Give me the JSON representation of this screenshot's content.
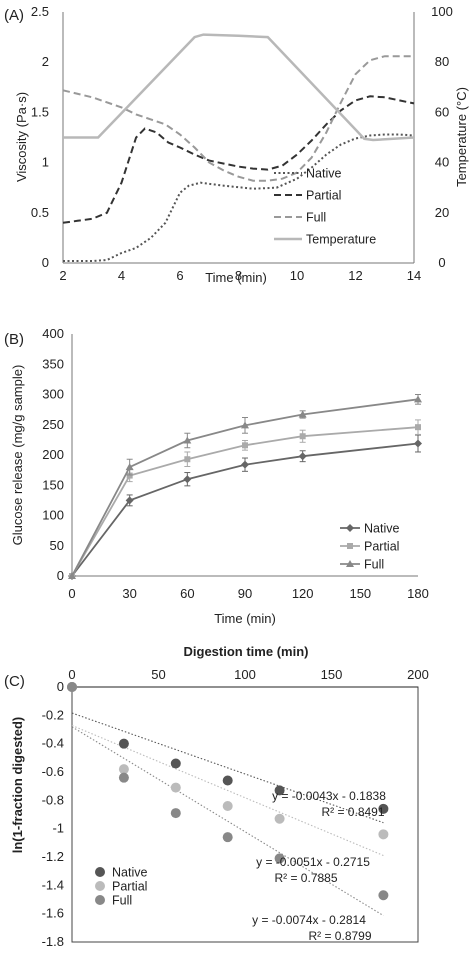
{
  "panels": {
    "a": {
      "label": "(A)"
    },
    "b": {
      "label": "(B)"
    },
    "c": {
      "label": "(C)"
    }
  },
  "chart_data": [
    {
      "type": "line",
      "panel": "(A)",
      "xlabel": "Time (min)",
      "ylabel": "Viscosity (Pa·s)",
      "y2label": "Temperature (°C)",
      "xlim": [
        2,
        14
      ],
      "ylim": [
        0,
        2.5
      ],
      "y2lim": [
        0,
        100
      ],
      "xticks": [
        "2",
        "4",
        "6",
        "8",
        "10",
        "12",
        "14"
      ],
      "yticks": [
        "0",
        "0.5",
        "1",
        "1.5",
        "2",
        "2.5"
      ],
      "y2ticks": [
        "0",
        "20",
        "40",
        "60",
        "80",
        "100"
      ],
      "grid": false,
      "legend_position": "bottom-right",
      "series": [
        {
          "name": "Native",
          "style": "dotted",
          "color": "#555555",
          "x": [
            2,
            3,
            3.5,
            4,
            4.5,
            5,
            5.5,
            6,
            6.3,
            6.7,
            7.5,
            8.5,
            9.3,
            10,
            10.5,
            11,
            11.5,
            12,
            12.5,
            13,
            13.5,
            14
          ],
          "y": [
            0.02,
            0.02,
            0.03,
            0.1,
            0.15,
            0.25,
            0.4,
            0.7,
            0.77,
            0.8,
            0.77,
            0.74,
            0.75,
            0.84,
            0.95,
            1.08,
            1.18,
            1.24,
            1.27,
            1.28,
            1.28,
            1.27
          ]
        },
        {
          "name": "Partial",
          "style": "dashed",
          "color": "#333333",
          "x": [
            2,
            2.5,
            3,
            3.5,
            4,
            4.5,
            4.8,
            5.2,
            5.6,
            6,
            6.5,
            7,
            7.5,
            8,
            8.5,
            9,
            9.5,
            10,
            10.5,
            11,
            11.5,
            12,
            12.5,
            13,
            13.5,
            14
          ],
          "y": [
            0.4,
            0.42,
            0.44,
            0.5,
            0.8,
            1.25,
            1.34,
            1.3,
            1.2,
            1.15,
            1.08,
            1.02,
            0.99,
            0.96,
            0.94,
            0.93,
            0.97,
            1.08,
            1.22,
            1.38,
            1.52,
            1.62,
            1.66,
            1.65,
            1.62,
            1.59
          ]
        },
        {
          "name": "Full",
          "style": "dashed",
          "color": "#999999",
          "x": [
            2,
            3,
            4,
            4.5,
            5,
            5.5,
            6,
            6.5,
            7,
            7.5,
            8,
            8.5,
            9,
            9.5,
            10,
            10.5,
            11,
            11.5,
            12,
            12.5,
            13,
            13.5,
            14
          ],
          "y": [
            1.72,
            1.65,
            1.55,
            1.48,
            1.43,
            1.38,
            1.28,
            1.15,
            1.0,
            0.92,
            0.86,
            0.82,
            0.82,
            0.84,
            0.9,
            1.05,
            1.3,
            1.6,
            1.88,
            2.02,
            2.06,
            2.06,
            2.06
          ]
        },
        {
          "name": "Temperature",
          "style": "solid",
          "color": "#b8b8b8",
          "axis": "right",
          "x": [
            2,
            3,
            3.2,
            6.5,
            6.8,
            8,
            9,
            12.3,
            12.6,
            14
          ],
          "y": [
            50,
            50,
            50,
            90,
            91,
            90.5,
            90,
            49.5,
            49,
            50
          ]
        }
      ]
    },
    {
      "type": "line",
      "panel": "(B)",
      "xlabel": "Time (min)",
      "ylabel": "Glucose release (mg/g sample)",
      "xlim": [
        0,
        180
      ],
      "ylim": [
        0,
        400
      ],
      "xticks": [
        "0",
        "30",
        "60",
        "90",
        "120",
        "150",
        "180"
      ],
      "yticks": [
        "0",
        "50",
        "100",
        "150",
        "200",
        "250",
        "300",
        "350",
        "400"
      ],
      "grid": false,
      "legend_position": "bottom-right",
      "x": [
        0,
        30,
        60,
        90,
        120,
        180
      ],
      "series": [
        {
          "name": "Native",
          "marker": "diamond",
          "color": "#666666",
          "values": [
            0,
            125,
            160,
            184,
            198,
            219
          ],
          "errors": [
            0,
            9,
            11,
            11,
            9,
            14
          ]
        },
        {
          "name": "Partial",
          "marker": "square",
          "color": "#aaaaaa",
          "values": [
            0,
            166,
            193,
            216,
            231,
            246
          ],
          "errors": [
            0,
            10,
            12,
            8,
            10,
            12
          ]
        },
        {
          "name": "Full",
          "marker": "triangle",
          "color": "#888888",
          "values": [
            0,
            180,
            224,
            249,
            267,
            292
          ],
          "errors": [
            0,
            13,
            12,
            13,
            6,
            8
          ]
        }
      ]
    },
    {
      "type": "scatter",
      "panel": "(C)",
      "xlabel": "Digestion time (min)",
      "ylabel": "ln(1-fraction digested)",
      "xlim": [
        0,
        200
      ],
      "ylim": [
        -1.8,
        0
      ],
      "xticks": [
        "0",
        "50",
        "100",
        "150",
        "200"
      ],
      "yticks": [
        "0",
        "-0.2",
        "-0.4",
        "-0.6",
        "-0.8",
        "-1",
        "-1.2",
        "-1.4",
        "-1.6",
        "-1.8"
      ],
      "grid": false,
      "legend_position": "bottom-left",
      "series": [
        {
          "name": "Native",
          "color": "#555555",
          "x": [
            0,
            30,
            60,
            90,
            120,
            180
          ],
          "y": [
            0,
            -0.4,
            -0.54,
            -0.66,
            -0.73,
            -0.86
          ],
          "trend": {
            "slope": -0.0043,
            "intercept": -0.1838,
            "equation": "y = -0.0043x - 0.1838",
            "r2": "R² = 0.8491"
          }
        },
        {
          "name": "Partial",
          "color": "#bbbbbb",
          "x": [
            0,
            30,
            60,
            90,
            120,
            180
          ],
          "y": [
            0,
            -0.58,
            -0.71,
            -0.84,
            -0.93,
            -1.04
          ],
          "trend": {
            "slope": -0.0051,
            "intercept": -0.2715,
            "equation": "y = -0.0051x - 0.2715",
            "r2": "R² = 0.7885"
          }
        },
        {
          "name": "Full",
          "color": "#888888",
          "x": [
            0,
            30,
            60,
            90,
            120,
            180
          ],
          "y": [
            0,
            -0.64,
            -0.89,
            -1.06,
            -1.21,
            -1.47
          ],
          "trend": {
            "slope": -0.0074,
            "intercept": -0.2814,
            "equation": "y = -0.0074x - 0.2814",
            "r2": "R² = 0.8799"
          }
        }
      ]
    }
  ]
}
